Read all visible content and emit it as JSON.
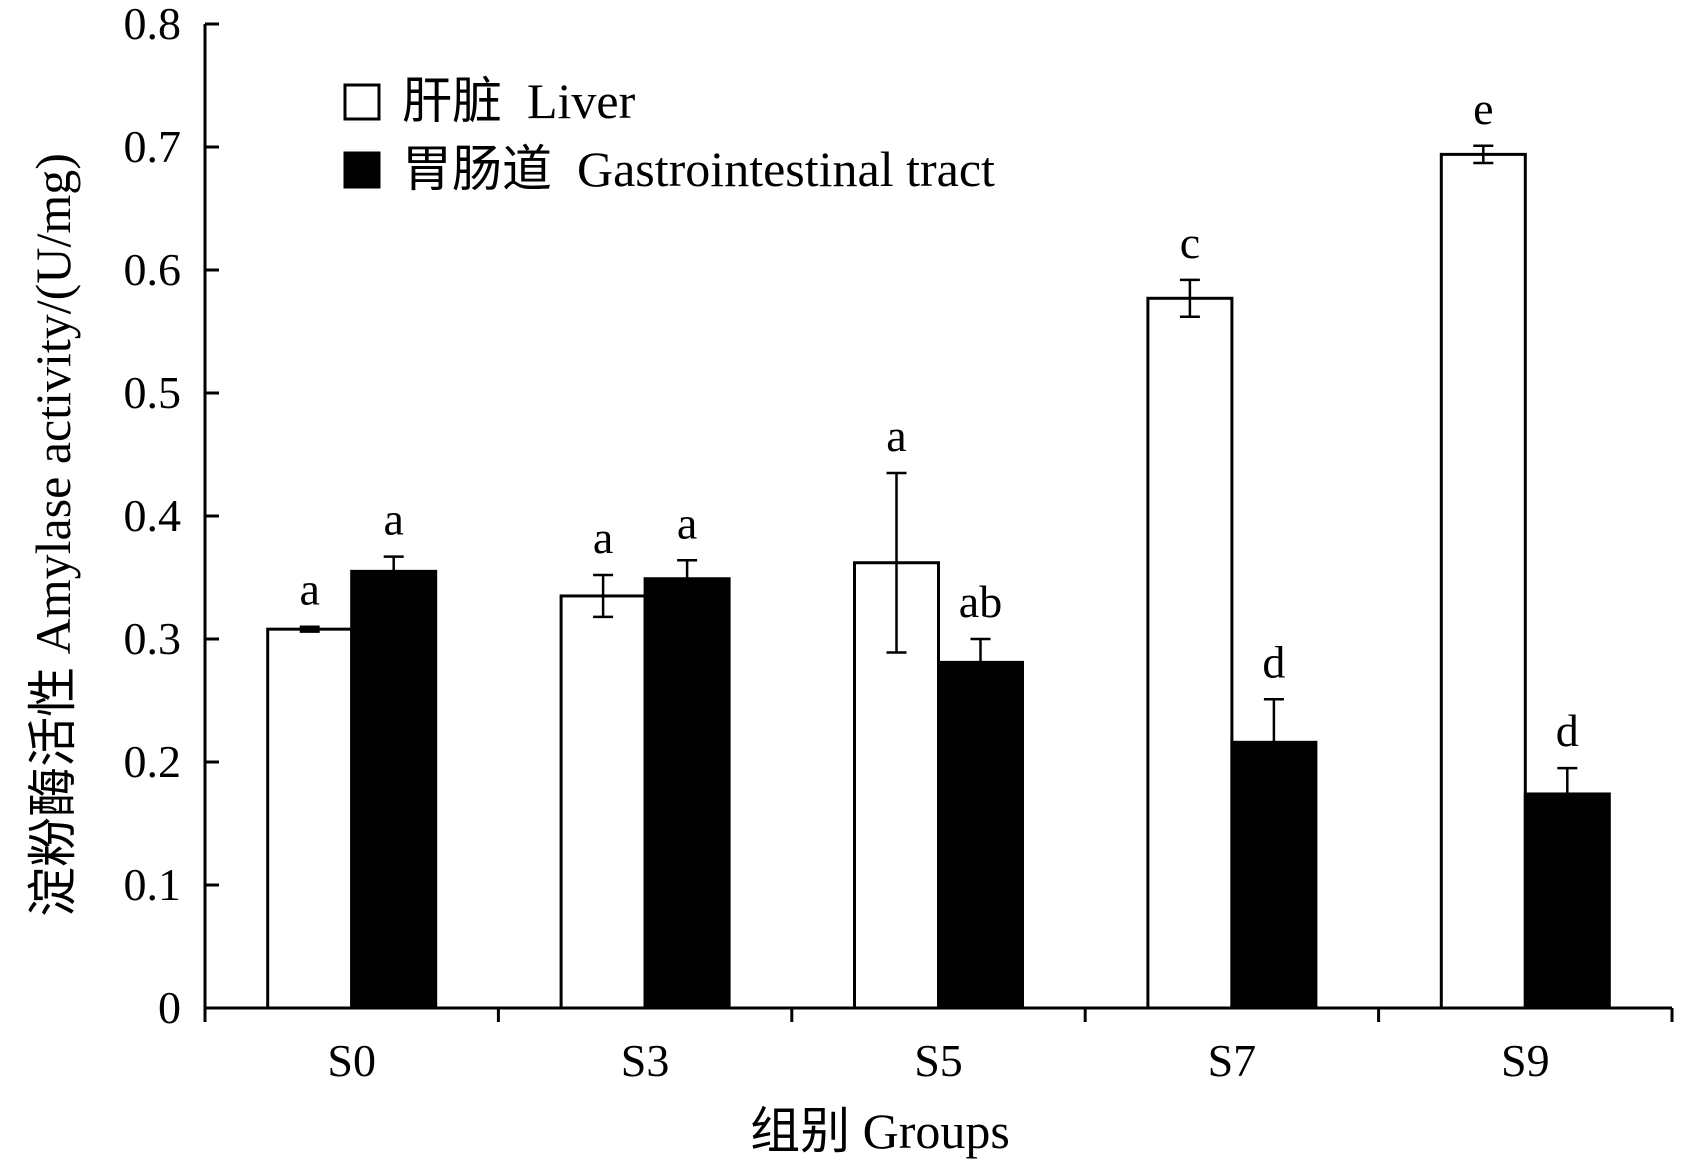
{
  "chart_data": {
    "type": "bar",
    "title": "",
    "xlabel": "组别 Groups",
    "ylabel": "淀粉酶活性 Amylase activity/(U/mg)",
    "ylim": [
      0,
      0.8
    ],
    "yticks": [
      0,
      0.1,
      0.2,
      0.3,
      0.4,
      0.5,
      0.6,
      0.7,
      0.8
    ],
    "ytick_labels": [
      "0",
      "0.1",
      "0.2",
      "0.3",
      "0.4",
      "0.5",
      "0.6",
      "0.7",
      "0.8"
    ],
    "categories": [
      "S0",
      "S3",
      "S5",
      "S7",
      "S9"
    ],
    "grid": false,
    "legend_position": "top-left",
    "series": [
      {
        "name": "肝脏  Liver",
        "fill": "#ffffff",
        "values": [
          0.308,
          0.335,
          0.362,
          0.577,
          0.694
        ],
        "errors": [
          0.002,
          0.017,
          0.073,
          0.015,
          0.007
        ],
        "sig": [
          "a",
          "a",
          "a",
          "c",
          "e"
        ]
      },
      {
        "name": "胃肠道  Gastrointestinal tract",
        "fill": "#000000",
        "values": [
          0.355,
          0.349,
          0.281,
          0.216,
          0.174
        ],
        "errors": [
          0.012,
          0.015,
          0.019,
          0.035,
          0.021
        ],
        "sig": [
          "a",
          "a",
          "ab",
          "d",
          "d"
        ]
      }
    ]
  }
}
